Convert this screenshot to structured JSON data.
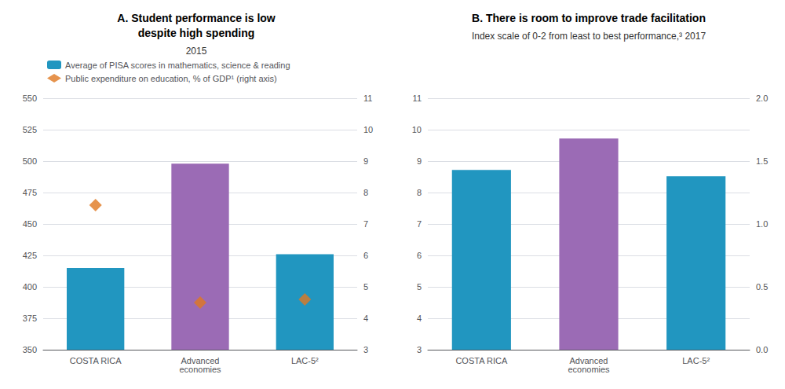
{
  "chart_data": [
    {
      "type": "bar",
      "title": "A. Student performance is low\ndespite high spending",
      "subtitle": "2015",
      "categories": [
        "COSTA RICA",
        "Advanced\neconomies",
        "LAC-5²"
      ],
      "series": [
        {
          "name": "Average of PISA scores in mathematics, science & reading",
          "type": "bar",
          "colors": [
            "#2196C0",
            "#9B6BB5",
            "#2196C0"
          ],
          "values": [
            415,
            498,
            426
          ]
        },
        {
          "name": "Public expenditure on education, % of GDP¹ (right axis)",
          "type": "scatter",
          "marker": "diamond",
          "color": "#E07820",
          "values": [
            7.6,
            4.5,
            4.6
          ],
          "axis": "y2"
        }
      ],
      "ylim": [
        350,
        550
      ],
      "yticks": [
        350,
        375,
        400,
        425,
        450,
        475,
        500,
        525,
        550
      ],
      "y2lim": [
        3,
        11
      ],
      "y2ticks": [
        3,
        4,
        5,
        6,
        7,
        8,
        9,
        10,
        11
      ],
      "grid": true,
      "legend": "upper left"
    },
    {
      "type": "bar",
      "title": "B. There is room to improve trade facilitation",
      "subtitle": "Index scale of 0-2 from least to best performance,³ 2017",
      "categories": [
        "COSTA RICA",
        "Advanced\neconomies",
        "LAC-5²"
      ],
      "series": [
        {
          "colors": [
            "#2196C0",
            "#9B6BB5",
            "#2196C0"
          ],
          "values": [
            1.43,
            1.68,
            1.38
          ],
          "axis": "y2"
        }
      ],
      "ylim": [
        3,
        11
      ],
      "yticks": [
        3,
        4,
        5,
        6,
        7,
        8,
        9,
        10,
        11
      ],
      "y2lim": [
        0.0,
        2.0
      ],
      "y2ticks": [
        {
          "value": 0,
          "label": "0.0"
        },
        0.5,
        {
          "value": 1,
          "label": "1.0"
        },
        1.5,
        {
          "value": 2,
          "label": "2.0"
        }
      ],
      "grid": true
    }
  ]
}
